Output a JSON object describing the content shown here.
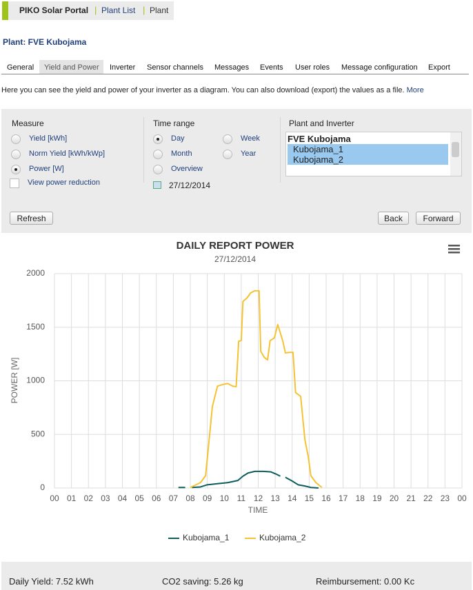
{
  "nav": {
    "brand": "PIKO Solar Portal",
    "links": [
      "Plant List",
      "Plant"
    ]
  },
  "plant_title": "Plant: FVE Kubojama",
  "tabs": {
    "items": [
      "General",
      "Yield and Power",
      "Inverter",
      "Sensor channels",
      "Messages",
      "Events",
      "User roles",
      "Message configuration",
      "Export"
    ],
    "active": 1
  },
  "description": "Here you can see the yield and power of your inverter as a diagram. You can also download (export) the values as a file.",
  "more_link": "More",
  "measure": {
    "title": "Measure",
    "options": [
      "Yield [kWh]",
      "Norm Yield [kWh/kWp]",
      "Power [W]"
    ],
    "selected": 2,
    "checkbox": "View power reduction"
  },
  "time_range": {
    "title": "Time range",
    "options": [
      "Day",
      "Month",
      "Overview",
      "Week",
      "Year"
    ],
    "selected": 0,
    "date": "27/12/2014"
  },
  "plant_inverter": {
    "title": "Plant and Inverter",
    "plant": "FVE Kubojama",
    "inverters": [
      "Kubojama_1",
      "Kubojama_2"
    ]
  },
  "buttons": {
    "refresh": "Refresh",
    "back": "Back",
    "forward": "Forward"
  },
  "chart_data": {
    "type": "line",
    "title": "DAILY REPORT POWER",
    "subtitle": "27/12/2014",
    "x_label": "TIME",
    "y_label": "POWER [W]",
    "xlim": [
      0,
      24
    ],
    "ylim": [
      0,
      2000
    ],
    "xticks": [
      {
        "value": 0,
        "label": "00"
      },
      {
        "value": 1,
        "label": "01"
      },
      {
        "value": 2,
        "label": "02"
      },
      {
        "value": 3,
        "label": "03"
      },
      {
        "value": 4,
        "label": "04"
      },
      {
        "value": 5,
        "label": "05"
      },
      {
        "value": 6,
        "label": "06"
      },
      {
        "value": 7,
        "label": "07"
      },
      {
        "value": 8,
        "label": "08"
      },
      {
        "value": 9,
        "label": "09"
      },
      {
        "value": 10,
        "label": "10"
      },
      {
        "value": 11,
        "label": "11"
      },
      {
        "value": 12,
        "label": "12"
      },
      {
        "value": 13,
        "label": "13"
      },
      {
        "value": 14,
        "label": "14"
      },
      {
        "value": 15,
        "label": "15"
      },
      {
        "value": 16,
        "label": "16"
      },
      {
        "value": 17,
        "label": "17"
      },
      {
        "value": 18,
        "label": "18"
      },
      {
        "value": 19,
        "label": "19"
      },
      {
        "value": 20,
        "label": "20"
      },
      {
        "value": 21,
        "label": "21"
      },
      {
        "value": 22,
        "label": "22"
      },
      {
        "value": 23,
        "label": "23"
      },
      {
        "value": 24,
        "label": "00"
      }
    ],
    "yticks": [
      0,
      500,
      1000,
      1500,
      2000
    ],
    "grid": true,
    "series": [
      {
        "name": "Kubojama_1",
        "color": "#0d5c5c",
        "x": [
          7.3,
          7.7,
          8.0,
          8.1,
          8.6,
          9.0,
          9.6,
          10.2,
          10.8,
          11.1,
          11.4,
          11.8,
          12.3,
          12.75,
          13.05,
          13.3,
          13.45,
          13.6,
          14.0,
          14.35,
          14.7,
          15.1,
          15.55
        ],
        "values": [
          5,
          5,
          null,
          5,
          10,
          30,
          40,
          50,
          70,
          110,
          140,
          155,
          155,
          150,
          130,
          110,
          null,
          100,
          65,
          30,
          20,
          5,
          0
        ]
      },
      {
        "name": "Kubojama_2",
        "color": "#f5c232",
        "x": [
          8.0,
          8.6,
          8.9,
          9.1,
          9.3,
          9.6,
          9.9,
          10.2,
          10.5,
          10.7,
          10.85,
          11.0,
          11.1,
          11.35,
          11.55,
          11.8,
          12.05,
          12.15,
          12.35,
          12.55,
          12.7,
          12.95,
          13.15,
          13.45,
          13.6,
          13.85,
          14.05,
          14.2,
          14.5,
          14.75,
          14.95,
          15.1,
          15.4,
          15.75
        ],
        "values": [
          5,
          50,
          115,
          435,
          760,
          950,
          965,
          975,
          950,
          945,
          1370,
          1375,
          1740,
          1775,
          1820,
          1840,
          1840,
          1275,
          1220,
          1195,
          1375,
          1400,
          1525,
          1370,
          1260,
          1265,
          1265,
          890,
          855,
          450,
          290,
          115,
          50,
          5
        ]
      }
    ]
  },
  "footer": [
    "Daily Yield: 7.52 kWh",
    "CO2 saving: 5.26 kg",
    "Reimbursement: 0.00 Kc"
  ]
}
